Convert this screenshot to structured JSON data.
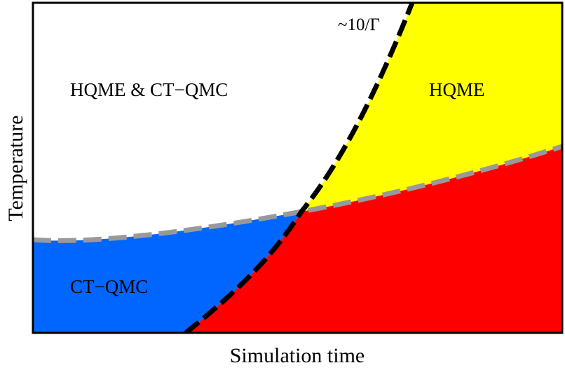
{
  "diagram": {
    "regions": {
      "both": "HQME & CT−QMC",
      "hqme": "HQME",
      "ctqmc": "CT−QMC"
    },
    "curve_label": "~10/Γ",
    "axes": {
      "x_label": "Simulation time",
      "y_label": "Temperature"
    },
    "colors": {
      "ctqmc_region": "#0066ff",
      "hqme_region": "#ffff00",
      "neither_region": "#ff0000",
      "both_region": "#ffffff",
      "boundary_black": "#000000",
      "boundary_gray": "#999999"
    }
  }
}
